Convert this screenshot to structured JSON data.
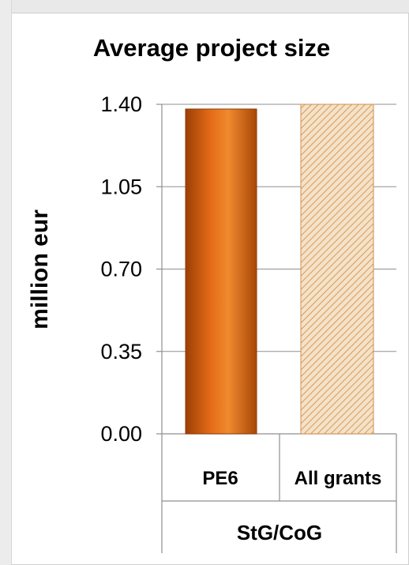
{
  "chart_data": {
    "type": "bar",
    "title": "Average project size",
    "ylabel": "million eur",
    "categories": [
      "PE6",
      "All grants"
    ],
    "group_label": "StG/CoG",
    "values": [
      1.38,
      1.4
    ],
    "ylim": [
      0,
      1.4
    ],
    "yticks": [
      "0.00",
      "0.35",
      "0.70",
      "1.05",
      "1.40"
    ],
    "grid": true,
    "legend": "none",
    "colors": {
      "bar_primary": "#d9651a",
      "bar_primary_dark": "#9c3f05",
      "bar_primary_light": "#f08a2f",
      "bar_hatch_fill": "#f4e2c8",
      "bar_hatch_line": "#d79a5a",
      "axis": "#8f8f8f",
      "grid": "#8f8f8f",
      "text": "#000000"
    }
  }
}
